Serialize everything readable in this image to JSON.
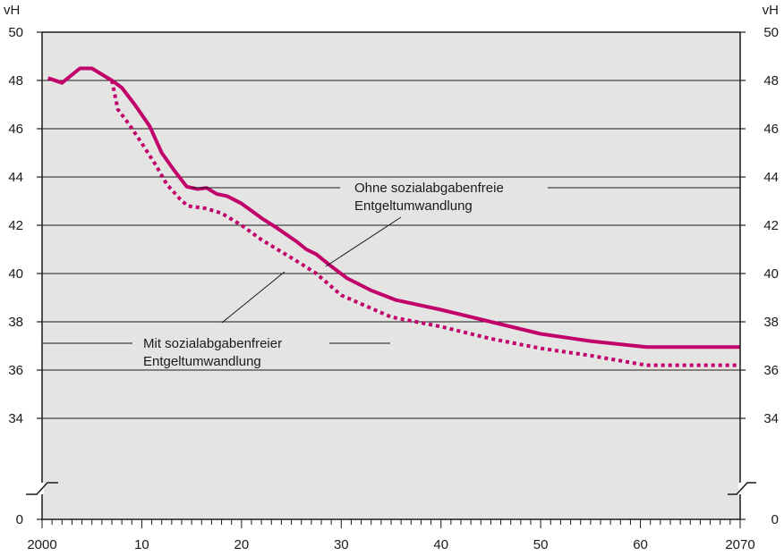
{
  "chart_data": {
    "type": "line",
    "unit_left": "vH",
    "unit_right": "vH",
    "x_ticks": [
      "2000",
      "10",
      "20",
      "30",
      "40",
      "50",
      "60",
      "2070"
    ],
    "y_ticks": [
      "50",
      "48",
      "46",
      "44",
      "42",
      "40",
      "38",
      "36",
      "34"
    ],
    "y_break_label": "0",
    "xlim": [
      2000,
      2070
    ],
    "ylim": [
      33,
      50
    ],
    "grid": true,
    "axis_break": true,
    "series": [
      {
        "name": "Ohne sozialabgabenfreie Entgeltumwandlung",
        "style": "solid",
        "color": "#c2006b",
        "points": [
          [
            2000.6,
            48.1
          ],
          [
            2002,
            47.9
          ],
          [
            2003.8,
            48.5
          ],
          [
            2005,
            48.5
          ],
          [
            2007,
            48.0
          ],
          [
            2008,
            47.7
          ],
          [
            2009.3,
            47.0
          ],
          [
            2010.8,
            46.1
          ],
          [
            2012,
            45.0
          ],
          [
            2013.2,
            44.3
          ],
          [
            2014.5,
            43.6
          ],
          [
            2015.6,
            43.5
          ],
          [
            2016.5,
            43.55
          ],
          [
            2017.5,
            43.3
          ],
          [
            2018.6,
            43.2
          ],
          [
            2020,
            42.9
          ],
          [
            2021,
            42.6
          ],
          [
            2022,
            42.3
          ],
          [
            2023.5,
            41.9
          ],
          [
            2025.6,
            41.3
          ],
          [
            2026.5,
            41.0
          ],
          [
            2027.5,
            40.8
          ],
          [
            2029,
            40.3
          ],
          [
            2030.6,
            39.8
          ],
          [
            2033,
            39.3
          ],
          [
            2035.5,
            38.9
          ],
          [
            2040,
            38.5
          ],
          [
            2045,
            38.0
          ],
          [
            2050,
            37.5
          ],
          [
            2055,
            37.2
          ],
          [
            2060.6,
            36.95
          ],
          [
            2070,
            36.95
          ]
        ]
      },
      {
        "name": "Mit sozialabgabenfreier Entgeltumwandlung",
        "style": "dotted",
        "color": "#c2006b",
        "points": [
          [
            2007,
            48.0
          ],
          [
            2007.6,
            46.8
          ],
          [
            2008.7,
            46.2
          ],
          [
            2010,
            45.4
          ],
          [
            2011.4,
            44.5
          ],
          [
            2012.5,
            43.7
          ],
          [
            2013.8,
            43.1
          ],
          [
            2014.6,
            42.8
          ],
          [
            2016.4,
            42.7
          ],
          [
            2018,
            42.5
          ],
          [
            2020,
            42.0
          ],
          [
            2022,
            41.4
          ],
          [
            2024,
            40.9
          ],
          [
            2026,
            40.4
          ],
          [
            2027.5,
            40.0
          ],
          [
            2030,
            39.1
          ],
          [
            2035,
            38.2
          ],
          [
            2040,
            37.8
          ],
          [
            2045,
            37.3
          ],
          [
            2050,
            36.9
          ],
          [
            2055,
            36.6
          ],
          [
            2060.6,
            36.2
          ],
          [
            2070,
            36.2
          ]
        ]
      }
    ],
    "annotations": [
      {
        "line1": "Ohne sozialabgabenfreie",
        "line2": "Entgeltumwandlung"
      },
      {
        "line1": "Mit sozialabgabenfreier",
        "line2": "Entgeltumwandlung"
      }
    ]
  }
}
